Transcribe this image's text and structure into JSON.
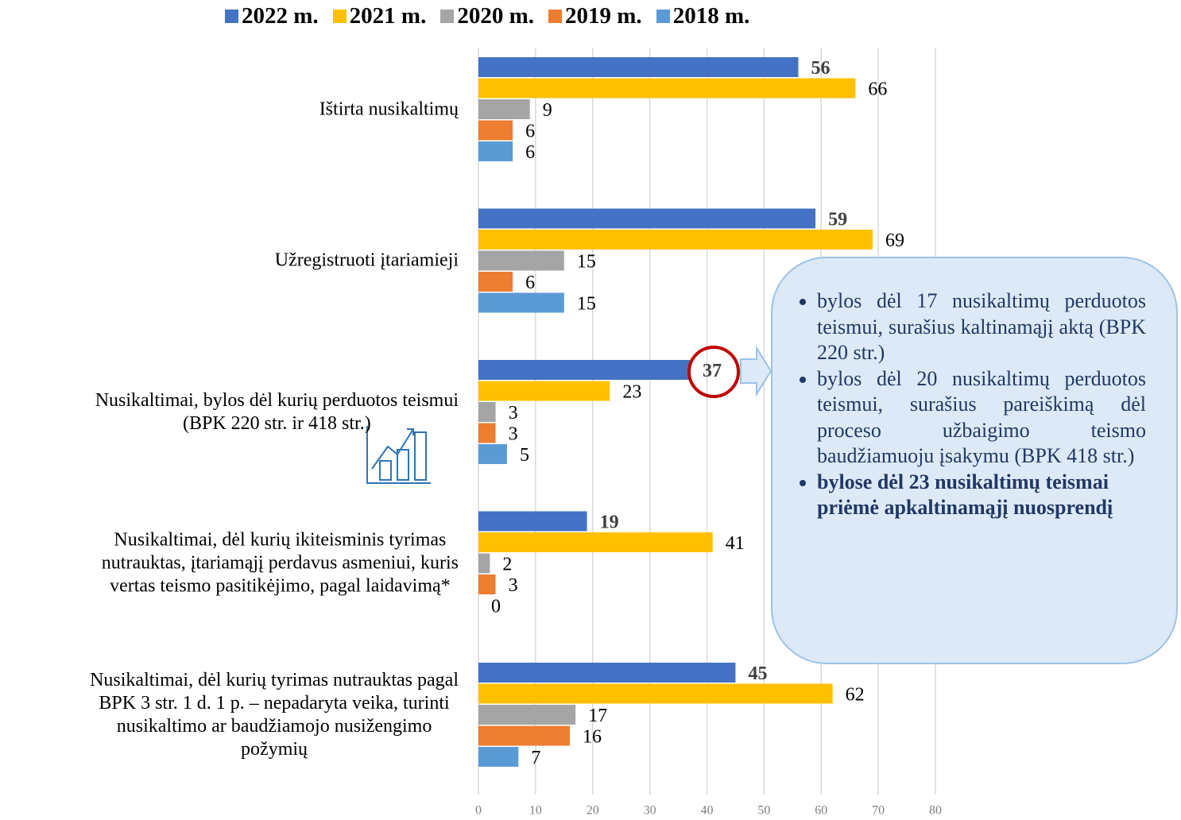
{
  "chart_data": {
    "type": "barh",
    "categories": [
      "Ištirta nusikaltimų",
      "Užregistruoti įtariamieji",
      "Nusikaltimai, bylos dėl kurių perduotos teismui\n(BPK 220 str. ir 418 str.)",
      "Nusikaltimai, dėl kurių ikiteisminis tyrimas\nnutrauktas, įtariamąjį perdavus asmeniui, kuris\nvertas teismo pasitikėjimo, pagal laidavimą*",
      "Nusikaltimai, dėl kurių tyrimas nutrauktas pagal\nBPK 3 str. 1 d. 1 p. – nepadaryta veika, turinti\nnusikaltimo ar baudžiamojo nusižengimo\npožymių"
    ],
    "series": [
      {
        "name": "2022 m.",
        "color": "#4472c4",
        "values": [
          56,
          59,
          37,
          19,
          45
        ]
      },
      {
        "name": "2021 m.",
        "color": "#ffc000",
        "values": [
          66,
          69,
          23,
          41,
          62
        ]
      },
      {
        "name": "2020 m.",
        "color": "#a5a5a5",
        "values": [
          9,
          15,
          3,
          2,
          17
        ]
      },
      {
        "name": "2019 m.",
        "color": "#ed7d31",
        "values": [
          6,
          6,
          3,
          3,
          16
        ]
      },
      {
        "name": "2018 m.",
        "color": "#5b9bd5",
        "values": [
          6,
          15,
          5,
          0,
          7
        ]
      }
    ],
    "xlim": [
      0,
      80
    ],
    "xticks": [
      0,
      10,
      20,
      30,
      40,
      50,
      60,
      70,
      80
    ],
    "grid": true,
    "legend": "top",
    "annotations": [
      "bylos dėl 17 nusikaltimų perduotos teismui, surašius kaltinamąjį aktą (BPK 220 str.)",
      "bylos dėl 20 nusikaltimų perduotos teismui, surašius pareiškimą dėl proceso užbaigimo teismo baudžiamuoju įsakymu (BPK 418 str.)",
      "bylose dėl 23 nusikaltimų teismai priėmė apkaltinamąjį nuosprendį"
    ]
  }
}
